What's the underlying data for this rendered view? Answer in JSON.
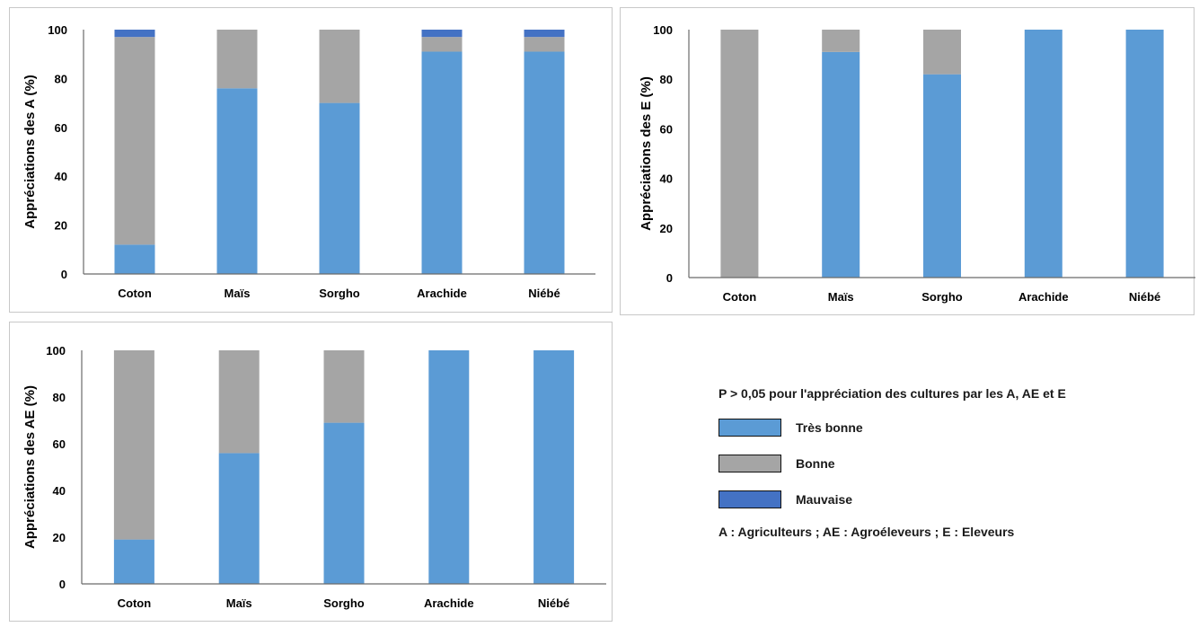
{
  "colors": {
    "tres_bonne": "#5b9bd5",
    "bonne": "#a5a5a5",
    "mauvaise": "#4472c4"
  },
  "legend": {
    "note": "P > 0,05 pour l'appréciation des cultures par les A, AE et E",
    "items": [
      {
        "label": "Très bonne",
        "color_key": "tres_bonne"
      },
      {
        "label": "Bonne",
        "color_key": "bonne"
      },
      {
        "label": "Mauvaise",
        "color_key": "mauvaise"
      }
    ],
    "abbreviations": "A : Agriculteurs ; AE : Agroéleveurs ; E : Eleveurs"
  },
  "chart_data": [
    {
      "type": "bar",
      "stacked": true,
      "ylabel": "Appréciations des A (%)",
      "ylim": [
        0,
        100
      ],
      "yticks": [
        0,
        20,
        40,
        60,
        80,
        100
      ],
      "categories": [
        "Coton",
        "Maïs",
        "Sorgho",
        "Arachide",
        "Niébé"
      ],
      "series": [
        {
          "name": "Très bonne",
          "values": [
            12,
            76,
            70,
            91,
            91
          ]
        },
        {
          "name": "Bonne",
          "values": [
            85,
            24,
            30,
            6,
            6
          ]
        },
        {
          "name": "Mauvaise",
          "values": [
            3,
            0,
            0,
            3,
            3
          ]
        }
      ]
    },
    {
      "type": "bar",
      "stacked": true,
      "ylabel": "Appréciations des E (%)",
      "ylim": [
        0,
        100
      ],
      "yticks": [
        0,
        20,
        40,
        60,
        80,
        100
      ],
      "categories": [
        "Coton",
        "Maïs",
        "Sorgho",
        "Arachide",
        "Niébé"
      ],
      "series": [
        {
          "name": "Très bonne",
          "values": [
            0,
            91,
            82,
            100,
            100
          ]
        },
        {
          "name": "Bonne",
          "values": [
            100,
            9,
            18,
            0,
            0
          ]
        },
        {
          "name": "Mauvaise",
          "values": [
            0,
            0,
            0,
            0,
            0
          ]
        }
      ]
    },
    {
      "type": "bar",
      "stacked": true,
      "ylabel": "Appréciations des AE (%)",
      "ylim": [
        0,
        100
      ],
      "yticks": [
        0,
        20,
        40,
        60,
        80,
        100
      ],
      "categories": [
        "Coton",
        "Maïs",
        "Sorgho",
        "Arachide",
        "Niébé"
      ],
      "series": [
        {
          "name": "Très bonne",
          "values": [
            19,
            56,
            69,
            100,
            100
          ]
        },
        {
          "name": "Bonne",
          "values": [
            81,
            44,
            31,
            0,
            0
          ]
        },
        {
          "name": "Mauvaise",
          "values": [
            0,
            0,
            0,
            0,
            0
          ]
        }
      ]
    }
  ]
}
